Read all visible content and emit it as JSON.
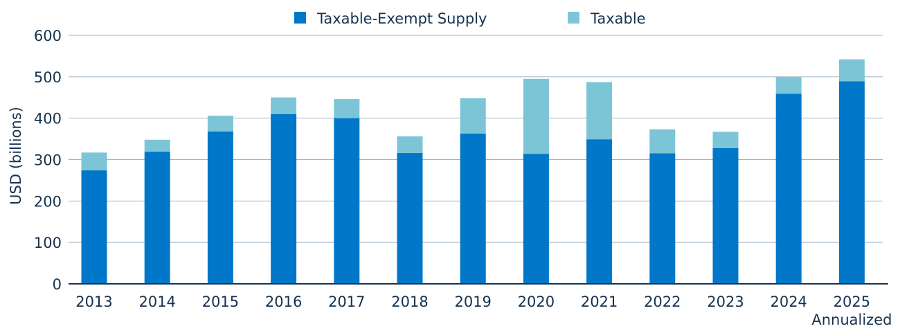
{
  "chart_data": {
    "type": "bar",
    "stacked": true,
    "categories": [
      "2013",
      "2014",
      "2015",
      "2016",
      "2017",
      "2018",
      "2019",
      "2020",
      "2021",
      "2022",
      "2023",
      "2024",
      "2025"
    ],
    "category_sublabels": [
      "",
      "",
      "",
      "",
      "",
      "",
      "",
      "",
      "",
      "",
      "",
      "",
      "Annualized"
    ],
    "series": [
      {
        "name": "Taxable-Exempt Supply",
        "color": "#0077c8",
        "values": [
          274,
          319,
          368,
          410,
          400,
          316,
          363,
          314,
          349,
          315,
          328,
          459,
          489
        ]
      },
      {
        "name": "Taxable",
        "color": "#7cc5d6",
        "values": [
          43,
          29,
          38,
          40,
          46,
          40,
          85,
          181,
          138,
          58,
          39,
          40,
          53
        ]
      }
    ],
    "ylabel": "USD (billions)",
    "xlabel": "",
    "ylim": [
      0,
      600
    ],
    "yticks": [
      0,
      100,
      200,
      300,
      400,
      500,
      600
    ],
    "grid": true,
    "legend_position": "top-center",
    "colors": {
      "gridline": "#9fb3c4",
      "axis": "#16324f",
      "text": "#16324f"
    }
  }
}
